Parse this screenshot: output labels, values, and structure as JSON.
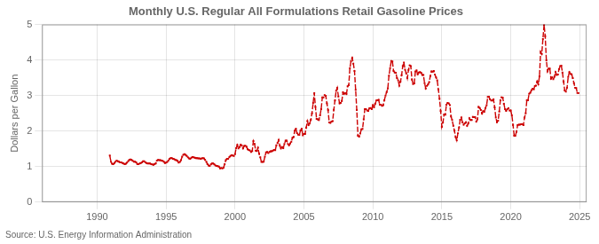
{
  "chart_data": {
    "type": "line",
    "title": "Monthly U.S. Regular All Formulations Retail Gasoline Prices",
    "ylabel": "Dollars per Gallon",
    "annotation": "Source: U.S. Energy Information Administration",
    "color": "#CC0000",
    "marker": "square",
    "line_style": "dashed",
    "grid": true,
    "xlim": [
      1986.0,
      2025.5
    ],
    "xticks": [
      1990,
      1995,
      2000,
      2005,
      2010,
      2015,
      2020,
      2025
    ],
    "ylim": [
      0,
      5
    ],
    "yticks": [
      0,
      1,
      2,
      3,
      4,
      5
    ],
    "x": [
      1990.917,
      1991.0,
      1991.083,
      1991.167,
      1991.25,
      1991.333,
      1991.417,
      1991.5,
      1991.583,
      1991.667,
      1991.75,
      1991.833,
      1991.917,
      1992.0,
      1992.083,
      1992.167,
      1992.25,
      1992.333,
      1992.417,
      1992.5,
      1992.583,
      1992.667,
      1992.75,
      1992.833,
      1992.917,
      1993.0,
      1993.083,
      1993.167,
      1993.25,
      1993.333,
      1993.417,
      1993.5,
      1993.583,
      1993.667,
      1993.75,
      1993.833,
      1993.917,
      1994.0,
      1994.083,
      1994.167,
      1994.25,
      1994.333,
      1994.417,
      1994.5,
      1994.583,
      1994.667,
      1994.75,
      1994.833,
      1994.917,
      1995.0,
      1995.083,
      1995.167,
      1995.25,
      1995.333,
      1995.417,
      1995.5,
      1995.583,
      1995.667,
      1995.75,
      1995.833,
      1995.917,
      1996.0,
      1996.083,
      1996.167,
      1996.25,
      1996.333,
      1996.417,
      1996.5,
      1996.583,
      1996.667,
      1996.75,
      1996.833,
      1996.917,
      1997.0,
      1997.083,
      1997.167,
      1997.25,
      1997.333,
      1997.417,
      1997.5,
      1997.583,
      1997.667,
      1997.75,
      1997.833,
      1997.917,
      1998.0,
      1998.083,
      1998.167,
      1998.25,
      1998.333,
      1998.417,
      1998.5,
      1998.583,
      1998.667,
      1998.75,
      1998.833,
      1998.917,
      1999.0,
      1999.083,
      1999.167,
      1999.25,
      1999.333,
      1999.417,
      1999.5,
      1999.583,
      1999.667,
      1999.75,
      1999.833,
      1999.917,
      2000.0,
      2000.083,
      2000.167,
      2000.25,
      2000.333,
      2000.417,
      2000.5,
      2000.583,
      2000.667,
      2000.75,
      2000.833,
      2000.917,
      2001.0,
      2001.083,
      2001.167,
      2001.25,
      2001.333,
      2001.417,
      2001.5,
      2001.583,
      2001.667,
      2001.75,
      2001.833,
      2001.917,
      2002.0,
      2002.083,
      2002.167,
      2002.25,
      2002.333,
      2002.417,
      2002.5,
      2002.583,
      2002.667,
      2002.75,
      2002.833,
      2002.917,
      2003.0,
      2003.083,
      2003.167,
      2003.25,
      2003.333,
      2003.417,
      2003.5,
      2003.583,
      2003.667,
      2003.75,
      2003.833,
      2003.917,
      2004.0,
      2004.083,
      2004.167,
      2004.25,
      2004.333,
      2004.417,
      2004.5,
      2004.583,
      2004.667,
      2004.75,
      2004.833,
      2004.917,
      2005.0,
      2005.083,
      2005.167,
      2005.25,
      2005.333,
      2005.417,
      2005.5,
      2005.583,
      2005.667,
      2005.75,
      2005.833,
      2005.917,
      2006.0,
      2006.083,
      2006.167,
      2006.25,
      2006.333,
      2006.417,
      2006.5,
      2006.583,
      2006.667,
      2006.75,
      2006.833,
      2006.917,
      2007.0,
      2007.083,
      2007.167,
      2007.25,
      2007.333,
      2007.417,
      2007.5,
      2007.583,
      2007.667,
      2007.75,
      2007.833,
      2007.917,
      2008.0,
      2008.083,
      2008.167,
      2008.25,
      2008.333,
      2008.417,
      2008.5,
      2008.583,
      2008.667,
      2008.75,
      2008.833,
      2008.917,
      2009.0,
      2009.083,
      2009.167,
      2009.25,
      2009.333,
      2009.417,
      2009.5,
      2009.583,
      2009.667,
      2009.75,
      2009.833,
      2009.917,
      2010.0,
      2010.083,
      2010.167,
      2010.25,
      2010.333,
      2010.417,
      2010.5,
      2010.583,
      2010.667,
      2010.75,
      2010.833,
      2010.917,
      2011.0,
      2011.083,
      2011.167,
      2011.25,
      2011.333,
      2011.417,
      2011.5,
      2011.583,
      2011.667,
      2011.75,
      2011.833,
      2011.917,
      2012.0,
      2012.083,
      2012.167,
      2012.25,
      2012.333,
      2012.417,
      2012.5,
      2012.583,
      2012.667,
      2012.75,
      2012.833,
      2012.917,
      2013.0,
      2013.083,
      2013.167,
      2013.25,
      2013.333,
      2013.417,
      2013.5,
      2013.583,
      2013.667,
      2013.75,
      2013.833,
      2013.917,
      2014.0,
      2014.083,
      2014.167,
      2014.25,
      2014.333,
      2014.417,
      2014.5,
      2014.583,
      2014.667,
      2014.75,
      2014.833,
      2014.917,
      2015.0,
      2015.083,
      2015.167,
      2015.25,
      2015.333,
      2015.417,
      2015.5,
      2015.583,
      2015.667,
      2015.75,
      2015.833,
      2015.917,
      2016.0,
      2016.083,
      2016.167,
      2016.25,
      2016.333,
      2016.417,
      2016.5,
      2016.583,
      2016.667,
      2016.75,
      2016.833,
      2016.917,
      2017.0,
      2017.083,
      2017.167,
      2017.25,
      2017.333,
      2017.417,
      2017.5,
      2017.583,
      2017.667,
      2017.75,
      2017.833,
      2017.917,
      2018.0,
      2018.083,
      2018.167,
      2018.25,
      2018.333,
      2018.417,
      2018.5,
      2018.583,
      2018.667,
      2018.75,
      2018.833,
      2018.917,
      2019.0,
      2019.083,
      2019.167,
      2019.25,
      2019.333,
      2019.417,
      2019.5,
      2019.583,
      2019.667,
      2019.75,
      2019.833,
      2019.917,
      2020.0,
      2020.083,
      2020.167,
      2020.25,
      2020.333,
      2020.417,
      2020.5,
      2020.583,
      2020.667,
      2020.75,
      2020.833,
      2020.917,
      2021.0,
      2021.083,
      2021.167,
      2021.25,
      2021.333,
      2021.417,
      2021.5,
      2021.583,
      2021.667,
      2021.75,
      2021.833,
      2021.917,
      2022.0,
      2022.083,
      2022.167,
      2022.25,
      2022.333,
      2022.417,
      2022.5,
      2022.583,
      2022.667,
      2022.75,
      2022.833,
      2022.917,
      2023.0,
      2023.083,
      2023.167,
      2023.25,
      2023.333,
      2023.417,
      2023.5,
      2023.583,
      2023.667,
      2023.75,
      2023.833,
      2023.917,
      2024.0,
      2024.083,
      2024.167,
      2024.25,
      2024.333,
      2024.417,
      2024.5,
      2024.583,
      2024.667,
      2024.75,
      2024.833,
      2024.917
    ],
    "values": [
      1.31,
      1.14,
      1.08,
      1.07,
      1.1,
      1.14,
      1.17,
      1.15,
      1.14,
      1.12,
      1.12,
      1.1,
      1.09,
      1.07,
      1.08,
      1.11,
      1.15,
      1.19,
      1.2,
      1.19,
      1.16,
      1.14,
      1.14,
      1.12,
      1.07,
      1.07,
      1.09,
      1.1,
      1.12,
      1.15,
      1.15,
      1.12,
      1.1,
      1.09,
      1.09,
      1.09,
      1.07,
      1.06,
      1.05,
      1.07,
      1.09,
      1.17,
      1.19,
      1.18,
      1.18,
      1.17,
      1.16,
      1.14,
      1.1,
      1.11,
      1.13,
      1.17,
      1.22,
      1.24,
      1.24,
      1.22,
      1.21,
      1.19,
      1.18,
      1.16,
      1.11,
      1.13,
      1.18,
      1.28,
      1.33,
      1.35,
      1.33,
      1.3,
      1.26,
      1.23,
      1.22,
      1.25,
      1.27,
      1.26,
      1.25,
      1.24,
      1.24,
      1.23,
      1.23,
      1.22,
      1.23,
      1.24,
      1.23,
      1.19,
      1.14,
      1.07,
      1.03,
      1.02,
      1.06,
      1.09,
      1.09,
      1.06,
      1.03,
      1.02,
      1.01,
      1.0,
      0.95,
      0.96,
      0.95,
      0.97,
      1.07,
      1.18,
      1.22,
      1.22,
      1.26,
      1.3,
      1.32,
      1.31,
      1.3,
      1.35,
      1.52,
      1.61,
      1.51,
      1.55,
      1.62,
      1.59,
      1.51,
      1.58,
      1.59,
      1.56,
      1.49,
      1.47,
      1.45,
      1.41,
      1.44,
      1.72,
      1.64,
      1.45,
      1.44,
      1.53,
      1.36,
      1.26,
      1.13,
      1.13,
      1.14,
      1.28,
      1.4,
      1.41,
      1.38,
      1.41,
      1.43,
      1.43,
      1.45,
      1.47,
      1.46,
      1.6,
      1.66,
      1.75,
      1.59,
      1.51,
      1.55,
      1.52,
      1.64,
      1.73,
      1.73,
      1.64,
      1.6,
      1.65,
      1.7,
      1.81,
      1.83,
      2.01,
      2.07,
      1.94,
      1.9,
      1.89,
      2.02,
      2.07,
      1.88,
      1.92,
      1.92,
      2.1,
      2.28,
      2.17,
      2.21,
      2.32,
      2.5,
      2.79,
      3.07,
      2.68,
      2.34,
      2.33,
      2.31,
      2.44,
      2.62,
      2.95,
      2.95,
      3.01,
      2.99,
      2.78,
      2.59,
      2.24,
      2.23,
      2.27,
      2.28,
      2.6,
      2.86,
      3.13,
      3.22,
      2.97,
      2.78,
      2.79,
      2.85,
      3.09,
      3.05,
      3.07,
      3.04,
      3.26,
      3.29,
      3.77,
      3.97,
      4.06,
      3.9,
      3.69,
      3.16,
      2.59,
      1.87,
      1.84,
      1.93,
      2.05,
      2.06,
      2.33,
      2.62,
      2.62,
      2.58,
      2.57,
      2.64,
      2.65,
      2.62,
      2.73,
      2.67,
      2.77,
      2.86,
      2.87,
      2.88,
      2.74,
      2.74,
      2.71,
      2.73,
      2.87,
      3.0,
      3.1,
      3.2,
      3.56,
      3.77,
      3.97,
      3.96,
      3.69,
      3.65,
      3.64,
      3.49,
      3.43,
      3.28,
      3.39,
      3.57,
      3.83,
      3.93,
      3.73,
      3.63,
      3.49,
      3.72,
      3.85,
      3.83,
      3.45,
      3.32,
      3.34,
      3.68,
      3.71,
      3.6,
      3.65,
      3.66,
      3.64,
      3.58,
      3.58,
      3.35,
      3.2,
      3.27,
      3.31,
      3.38,
      3.55,
      3.68,
      3.67,
      3.69,
      3.59,
      3.51,
      3.43,
      3.17,
      2.91,
      2.56,
      2.12,
      2.24,
      2.47,
      2.46,
      2.74,
      2.79,
      2.78,
      2.73,
      2.41,
      2.31,
      2.15,
      2.01,
      1.83,
      1.74,
      1.94,
      2.1,
      2.32,
      2.38,
      2.24,
      2.18,
      2.22,
      2.25,
      2.15,
      2.21,
      2.36,
      2.31,
      2.31,
      2.4,
      2.39,
      2.39,
      2.27,
      2.33,
      2.68,
      2.65,
      2.59,
      2.49,
      2.56,
      2.54,
      2.65,
      2.73,
      2.96,
      2.97,
      2.89,
      2.86,
      2.86,
      2.89,
      2.67,
      2.38,
      2.25,
      2.29,
      2.55,
      2.87,
      2.95,
      2.94,
      2.77,
      2.62,
      2.57,
      2.62,
      2.64,
      2.58,
      2.58,
      2.44,
      2.17,
      1.87,
      1.87,
      1.98,
      2.17,
      2.18,
      2.18,
      2.19,
      2.19,
      2.17,
      2.38,
      2.5,
      2.87,
      2.87,
      3.05,
      3.08,
      3.15,
      3.19,
      3.17,
      3.27,
      3.28,
      3.4,
      3.32,
      3.54,
      4.23,
      4.17,
      4.59,
      4.99,
      4.67,
      3.99,
      3.68,
      3.76,
      3.76,
      3.47,
      3.51,
      3.46,
      3.53,
      3.66,
      3.58,
      3.59,
      3.74,
      3.83,
      3.84,
      3.65,
      3.39,
      3.14,
      3.11,
      3.22,
      3.52,
      3.66,
      3.61,
      3.6,
      3.49,
      3.35,
      3.22,
      3.21,
      3.07,
      3.07
    ]
  }
}
